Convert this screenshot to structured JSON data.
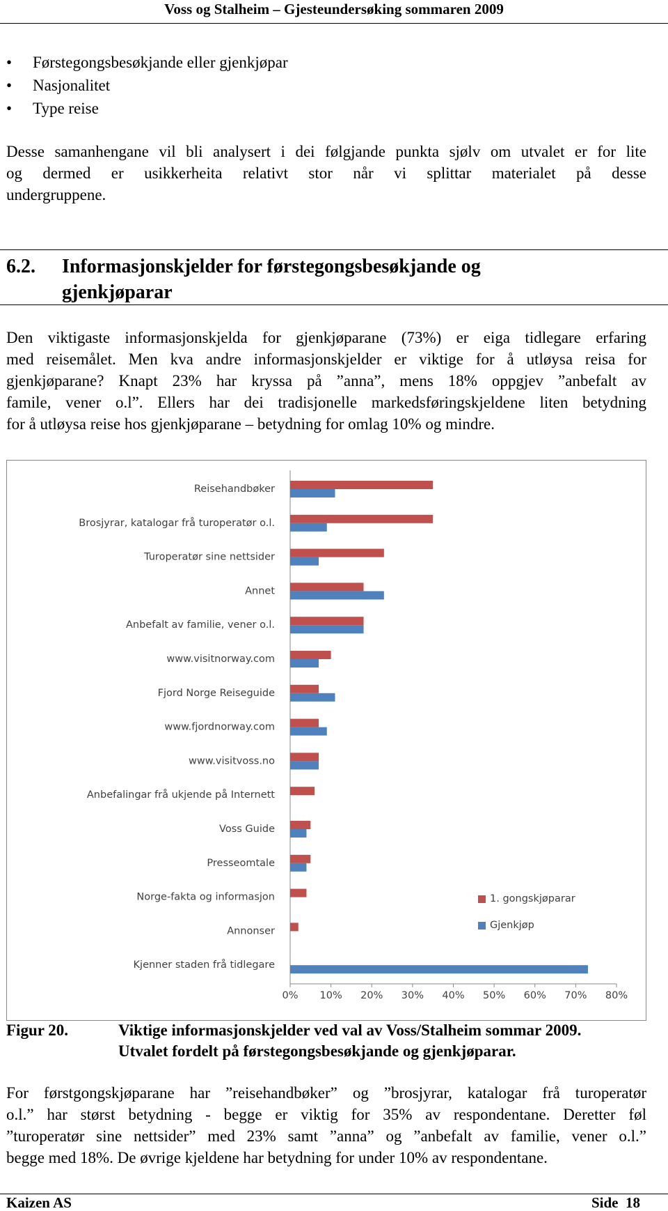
{
  "header": {
    "title": "Voss og Stalheim – Gjesteundersøking sommaren 2009"
  },
  "bullets": [
    "Førstegongsbesøkjande eller gjenkjøpar",
    "Nasjonalitet",
    "Type reise"
  ],
  "paragraph1": [
    "Desse samanhengane vil bli analysert i dei følgjande punkta sjølv om utvalet er for lite",
    "og dermed  er usikkerheita relativt stor når vi splittar materialet på desse",
    "undergruppene."
  ],
  "section": {
    "number": "6.2.",
    "title": [
      "Informasjonskjelder for førstegongsbesøkjande og",
      "gjenkjøparar"
    ]
  },
  "paragraph2": [
    "Den viktigaste informasjonskjelda for gjenkjøparane (73%) er eiga tidlegare erfaring",
    "med reisemålet. Men kva andre informasjonskjelder er viktige for å utløysa reisa for",
    "gjenkjøparane? Knapt 23% har kryssa på ”anna”, mens 18% oppgjev ”anbefalt av",
    "famile, vener o.l”. Ellers har dei tradisjonelle markedsføringskjeldene liten betydning",
    "for å utløysa reise hos gjenkjøparane – betydning for omlag 10% og mindre."
  ],
  "chart_data": {
    "type": "barh",
    "categories": [
      "Reisehandbøker",
      "Brosjyrar, katalogar frå turoperatør o.l.",
      "Turoperatør sine nettsider",
      "Annet",
      "Anbefalt av familie, vener o.l.",
      "www.visitnorway.com",
      "Fjord Norge Reiseguide",
      "www.fjordnorway.com",
      "www.visitvoss.no",
      "Anbefalingar frå ukjende på Internett",
      "Voss Guide",
      "Presseomtale",
      "Norge-fakta og informasjon",
      "Annonser",
      "Kjenner staden frå tidlegare"
    ],
    "series": [
      {
        "name": "1. gongskjøparar",
        "color": "#c0504d",
        "values": [
          35,
          35,
          23,
          18,
          18,
          10,
          7,
          7,
          7,
          6,
          5,
          5,
          4,
          2,
          0
        ]
      },
      {
        "name": "Gjenkjøp",
        "color": "#4f81bd",
        "values": [
          11,
          9,
          7,
          23,
          18,
          7,
          11,
          9,
          7,
          0,
          4,
          4,
          0,
          0,
          73
        ]
      }
    ],
    "xlim": [
      0,
      80
    ],
    "xticks": [
      {
        "value": 0,
        "label": "0%"
      },
      {
        "value": 10,
        "label": "10%"
      },
      {
        "value": 20,
        "label": "20%"
      },
      {
        "value": 30,
        "label": "30%"
      },
      {
        "value": 40,
        "label": "40%"
      },
      {
        "value": 50,
        "label": "50%"
      },
      {
        "value": 60,
        "label": "60%"
      },
      {
        "value": 70,
        "label": "70%"
      },
      {
        "value": 80,
        "label": "80%"
      }
    ],
    "legend": "right"
  },
  "caption": {
    "label": "Figur 20.",
    "lines": [
      "Viktige informasjonskjelder ved val av Voss/Stalheim sommar 2009.",
      "Utvalet fordelt på førstegongsbesøkjande og gjenkjøparar."
    ]
  },
  "paragraph3": [
    "For førstgongskjøparane har ”reisehandbøker” og ”brosjyrar, katalogar frå turoperatør",
    "o.l.” har størst betydning - begge er viktig for 35% av respondentane.  Deretter føl",
    "”turoperatør sine nettsider” med 23% samt ”anna” og ”anbefalt av familie, vener o.l.”",
    "begge med 18%.  De øvrige kjeldene har betydning for under 10% av respondentane."
  ],
  "footer": {
    "left": "Kaizen AS",
    "right": "Side  18"
  }
}
